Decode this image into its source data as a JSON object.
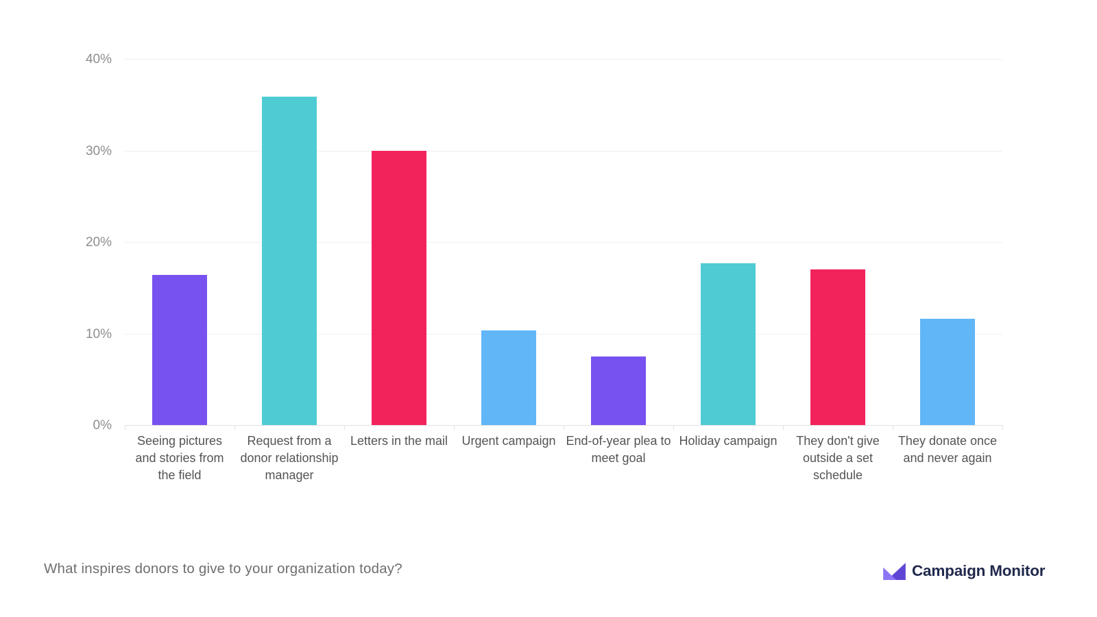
{
  "chart_data": {
    "type": "bar",
    "categories": [
      "Seeing pictures and stories from the field",
      "Request from a donor relationship manager",
      "Letters in the mail",
      "Urgent campaign",
      "End-of-year plea to meet goal",
      "Holiday campaign",
      "They don't give outside a set schedule",
      "They donate once and never again"
    ],
    "values": [
      16.4,
      35.9,
      30.0,
      10.3,
      7.5,
      17.7,
      17.0,
      11.6
    ],
    "bar_colors": [
      "#7852f0",
      "#4fccd3",
      "#f2235b",
      "#61b6f8",
      "#7852f0",
      "#4fccd3",
      "#f2235b",
      "#61b6f8"
    ],
    "title": "",
    "xlabel": "",
    "ylabel": "",
    "ylim": [
      0,
      40
    ],
    "y_ticks": [
      {
        "value": 0,
        "label": "0%"
      },
      {
        "value": 10,
        "label": "10%"
      },
      {
        "value": 20,
        "label": "20%"
      },
      {
        "value": 30,
        "label": "30%"
      },
      {
        "value": 40,
        "label": "40%"
      }
    ],
    "grid": "horizontal-on",
    "legend": "none"
  },
  "footer": {
    "question": "What inspires donors to give to your organization today?",
    "brand": "Campaign Monitor"
  },
  "colors": {
    "purple": "#7852f0",
    "teal": "#4fccd3",
    "pink": "#f2235b",
    "blue": "#61b6f8",
    "gridline": "#efefef",
    "axis_line": "#e2e2e2",
    "y_tick_label": "#8d8d8d",
    "category_label": "#545454",
    "question_text": "#6e6e6e",
    "brand_navy": "#20294c",
    "logo_purple": "#6a4fe8",
    "logo_light_purple": "#a violet"
  },
  "icons": {
    "logo_mark": "campaign-monitor-logo-icon"
  }
}
